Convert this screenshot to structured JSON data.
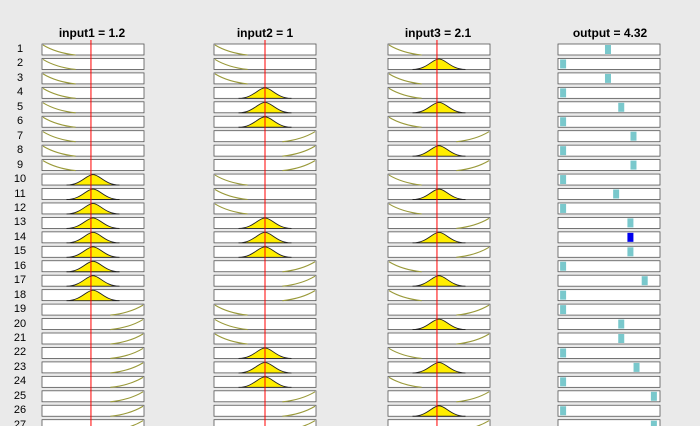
{
  "headers": {
    "input1": "input1 = 1.2",
    "input2": "input2 = 1",
    "input3": "input3 = 2.1",
    "output": "output = 4.32"
  },
  "colors": {
    "panel_bg": "#eaeaea",
    "box_fill": "#ffffff",
    "mf_line": "#9a9a3a",
    "mf_fill": "#ffee00",
    "input_marker": "#ff0000",
    "output_bar": "#79c8cc",
    "output_highlight": "#0000ee"
  },
  "rules": [
    {
      "n": "1",
      "in1": "low",
      "in2": "low",
      "in3": "low",
      "out": 0.49,
      "hl": false
    },
    {
      "n": "2",
      "in1": "low",
      "in2": "low",
      "in3": "mid",
      "out": 0.05,
      "hl": false
    },
    {
      "n": "3",
      "in1": "low",
      "in2": "low",
      "in3": "low",
      "out": 0.49,
      "hl": false
    },
    {
      "n": "4",
      "in1": "low",
      "in2": "mid",
      "in3": "low",
      "out": 0.05,
      "hl": false
    },
    {
      "n": "5",
      "in1": "low",
      "in2": "mid",
      "in3": "mid",
      "out": 0.62,
      "hl": false
    },
    {
      "n": "6",
      "in1": "low",
      "in2": "mid",
      "in3": "low",
      "out": 0.05,
      "hl": false
    },
    {
      "n": "7",
      "in1": "low",
      "in2": "high",
      "in3": "high",
      "out": 0.74,
      "hl": false
    },
    {
      "n": "8",
      "in1": "low",
      "in2": "high",
      "in3": "mid",
      "out": 0.05,
      "hl": false
    },
    {
      "n": "9",
      "in1": "low",
      "in2": "high",
      "in3": "high",
      "out": 0.74,
      "hl": false
    },
    {
      "n": "10",
      "in1": "mid",
      "in2": "low",
      "in3": "low",
      "out": 0.05,
      "hl": false
    },
    {
      "n": "11",
      "in1": "mid",
      "in2": "low",
      "in3": "mid",
      "out": 0.57,
      "hl": false
    },
    {
      "n": "12",
      "in1": "mid",
      "in2": "low",
      "in3": "low",
      "out": 0.05,
      "hl": false
    },
    {
      "n": "13",
      "in1": "mid",
      "in2": "mid",
      "in3": "high",
      "out": 0.71,
      "hl": false
    },
    {
      "n": "14",
      "in1": "mid",
      "in2": "mid",
      "in3": "mid",
      "out": 0.71,
      "hl": true
    },
    {
      "n": "15",
      "in1": "mid",
      "in2": "mid",
      "in3": "high",
      "out": 0.71,
      "hl": false
    },
    {
      "n": "16",
      "in1": "mid",
      "in2": "high",
      "in3": "low",
      "out": 0.05,
      "hl": false
    },
    {
      "n": "17",
      "in1": "mid",
      "in2": "high",
      "in3": "mid",
      "out": 0.85,
      "hl": false
    },
    {
      "n": "18",
      "in1": "mid",
      "in2": "high",
      "in3": "low",
      "out": 0.05,
      "hl": false
    },
    {
      "n": "19",
      "in1": "high",
      "in2": "low",
      "in3": "high",
      "out": 0.05,
      "hl": false
    },
    {
      "n": "20",
      "in1": "high",
      "in2": "low",
      "in3": "mid",
      "out": 0.62,
      "hl": false
    },
    {
      "n": "21",
      "in1": "high",
      "in2": "low",
      "in3": "high",
      "out": 0.62,
      "hl": false
    },
    {
      "n": "22",
      "in1": "high",
      "in2": "mid",
      "in3": "low",
      "out": 0.05,
      "hl": false
    },
    {
      "n": "23",
      "in1": "high",
      "in2": "mid",
      "in3": "mid",
      "out": 0.77,
      "hl": false
    },
    {
      "n": "24",
      "in1": "high",
      "in2": "mid",
      "in3": "low",
      "out": 0.05,
      "hl": false
    },
    {
      "n": "25",
      "in1": "high",
      "in2": "high",
      "in3": "high",
      "out": 0.94,
      "hl": false
    },
    {
      "n": "26",
      "in1": "high",
      "in2": "high",
      "in3": "mid",
      "out": 0.05,
      "hl": false
    },
    {
      "n": "27",
      "in1": "high",
      "in2": "high",
      "in3": "high",
      "out": 0.94,
      "hl": false
    }
  ],
  "inputs": {
    "input1": {
      "value_fraction": 0.48,
      "fired": [
        10,
        11,
        12,
        13,
        14,
        15,
        16,
        17,
        18
      ]
    },
    "input2": {
      "value_fraction": 0.5,
      "fired": [
        4,
        5,
        6,
        13,
        14,
        15,
        22,
        23,
        24
      ]
    },
    "input3": {
      "value_fraction": 0.48,
      "fired": [
        2,
        5,
        8,
        11,
        14,
        17,
        20,
        23,
        26
      ]
    }
  }
}
